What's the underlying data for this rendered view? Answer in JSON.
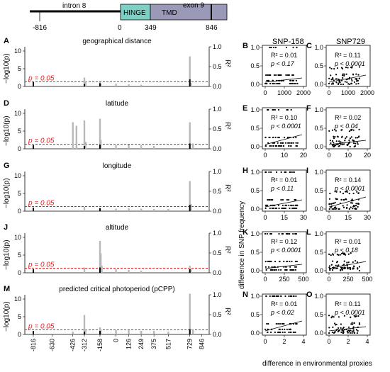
{
  "gene": {
    "intron": "intron 8",
    "exon": "exon 9",
    "hinge": "HINGE",
    "tmd": "TMD",
    "pos_labels": [
      "-816",
      "0",
      "349",
      "846"
    ],
    "colors": {
      "hinge": "#7fd0c4",
      "tmd": "#9a9ab8"
    }
  },
  "left_panels": [
    {
      "letter": "A",
      "title": "geographical distance"
    },
    {
      "letter": "D",
      "title": "latitude"
    },
    {
      "letter": "G",
      "title": "longitude"
    },
    {
      "letter": "J",
      "title": "altitude"
    },
    {
      "letter": "M",
      "title": "predicted critical photoperiod (pCPP)"
    }
  ],
  "left_axis": {
    "ylabel": "−log10(p)",
    "yticks": [
      "0",
      "5",
      "10"
    ],
    "r2label": "R²",
    "r2ticks": [
      "0.0",
      "0.5",
      "1.0"
    ],
    "pline_label": "p = 0.05",
    "xticks": [
      "-816",
      "-630",
      "-426",
      "-312",
      "-158",
      "0",
      "126",
      "249",
      "375",
      "517",
      "729",
      "846"
    ]
  },
  "mid_header": "SNP-158",
  "right_header": "SNP729",
  "scatter_panels": [
    {
      "letter": "B",
      "r2": "R² = 0.01",
      "p": "p < 0.17",
      "xticks": [
        "0",
        "1000",
        "2000"
      ]
    },
    {
      "letter": "C",
      "r2": "R² = 0.11",
      "p": "p < 0.0001",
      "xticks": [
        "0",
        "1000",
        "2000"
      ]
    },
    {
      "letter": "E",
      "r2": "R² = 0.10",
      "p": "p < 0.0001",
      "xticks": [
        "0",
        "10",
        "20"
      ]
    },
    {
      "letter": "F",
      "r2": "R² = 0.02",
      "p": "p < 0.04",
      "xticks": [
        "0",
        "10",
        "20"
      ]
    },
    {
      "letter": "H",
      "r2": "R² = 0.01",
      "p": "p < 0.11",
      "xticks": [
        "0",
        "15",
        "30"
      ]
    },
    {
      "letter": "I",
      "r2": "R² = 0.14",
      "p": "p < 0.0001",
      "xticks": [
        "0",
        "15",
        "30"
      ]
    },
    {
      "letter": "K",
      "r2": "R² = 0.12",
      "p": "p < 0.0001",
      "xticks": [
        "0",
        "250",
        "500"
      ]
    },
    {
      "letter": "L",
      "r2": "R² = 0.01",
      "p": "p < 0.18",
      "xticks": [
        "0",
        "250",
        "500"
      ]
    },
    {
      "letter": "N",
      "r2": "R² = 0.01",
      "p": "p < 0.02",
      "xticks": [
        "0",
        "2",
        "4"
      ]
    },
    {
      "letter": "O",
      "r2": "R² = 0.11",
      "p": "p < 0.0001",
      "xticks": [
        "0",
        "2",
        "4"
      ]
    }
  ],
  "scatter_axis": {
    "yticks": [
      "0.0",
      "0.5",
      "1.0"
    ],
    "ylabel": "difference in SNP frequency",
    "xlabel": "difference in environmental proxies"
  }
}
